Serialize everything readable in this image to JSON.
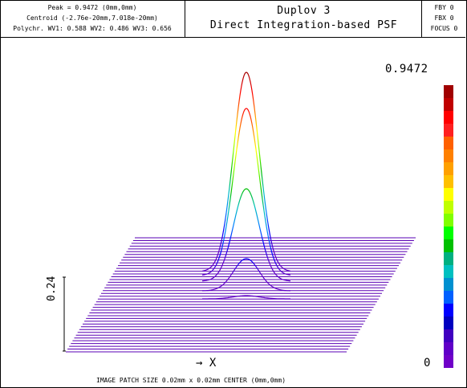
{
  "header": {
    "left": {
      "peak": "Peak = 0.9472 (0mm,0mm)",
      "centroid": "Centroid (-2.76e-20mm,7.018e-20mm)",
      "polychr": "Polychr. WV1: 0.588 WV2: 0.486 WV3: 0.656"
    },
    "center": {
      "title": "Duplov 3",
      "subtitle": "Direct Integration-based PSF"
    },
    "right": {
      "fby": "FBY 0",
      "fbx": "FBX 0",
      "focus": "FOCUS 0"
    }
  },
  "plot": {
    "color_max": "0.9472",
    "color_min": "0",
    "z_scale": "0.24",
    "x_axis": "X",
    "x_arrow": "→",
    "colors": {
      "grid": "#5a00b4",
      "band": [
        "#6000c8",
        "#0000ff",
        "#0080ff",
        "#00c0c0",
        "#00c000",
        "#80ff00",
        "#ffff00",
        "#ff8000",
        "#ff0000",
        "#a00000"
      ]
    },
    "peak": 0.9472
  },
  "footer": {
    "text": "IMAGE PATCH SIZE 0.02mm x 0.02mm    CENTER (0mm,0mm)"
  }
}
